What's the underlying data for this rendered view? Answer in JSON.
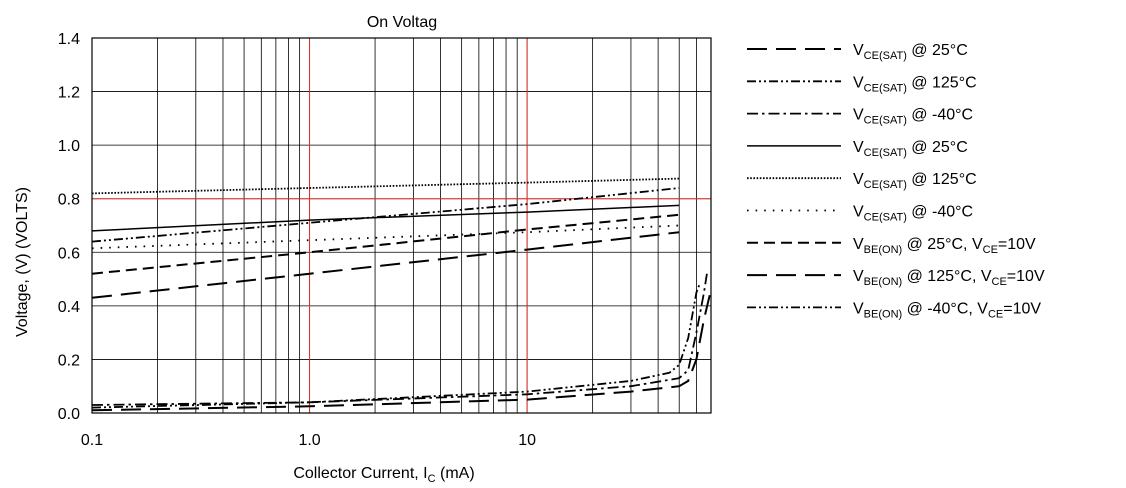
{
  "chart_data": {
    "type": "line",
    "title": "On Voltag",
    "xlabel": {
      "main": "Collector Current, I",
      "sub": "C",
      "tail": " (mA)"
    },
    "ylabel": "Voltage, (V) (VOLTS)",
    "x_scale": "log",
    "xlim": [
      0.1,
      70
    ],
    "ylim": [
      0,
      1.4
    ],
    "x_tick_labels": [
      {
        "value": 0.1,
        "label": "0.1"
      },
      {
        "value": 1,
        "label": "1.0"
      },
      {
        "value": 10,
        "label": "10"
      }
    ],
    "y_tick_labels": [
      {
        "value": 0,
        "label": "0.0"
      },
      {
        "value": 0.2,
        "label": "0.2"
      },
      {
        "value": 0.4,
        "label": "0.4"
      },
      {
        "value": 0.6,
        "label": "0.6"
      },
      {
        "value": 0.8,
        "label": "0.8"
      },
      {
        "value": 1.0,
        "label": "1.0"
      },
      {
        "value": 1.2,
        "label": "1.2"
      },
      {
        "value": 1.4,
        "label": "1.4"
      }
    ],
    "grid": true,
    "grid_color": "#000000",
    "highlight_gridlines": {
      "x": [
        1,
        10
      ],
      "y": [
        0.8
      ],
      "color": "#e8302a"
    },
    "legend_position": "right",
    "series": [
      {
        "name": {
          "main": "V",
          "sub": "CE(SAT)",
          "tail": " @ 25°C"
        },
        "dash": "long-dash",
        "points": [
          [
            0.1,
            0.01
          ],
          [
            1,
            0.025
          ],
          [
            10,
            0.05
          ],
          [
            30,
            0.08
          ],
          [
            50,
            0.1
          ],
          [
            55,
            0.12
          ],
          [
            60,
            0.2
          ],
          [
            65,
            0.35
          ],
          [
            70,
            0.46
          ]
        ]
      },
      {
        "name": {
          "main": "V",
          "sub": "CE(SAT)",
          "tail": " @ 125°C"
        },
        "dash": "dash-dot-dot",
        "points": [
          [
            0.1,
            0.02
          ],
          [
            1,
            0.04
          ],
          [
            10,
            0.08
          ],
          [
            30,
            0.12
          ],
          [
            45,
            0.15
          ],
          [
            50,
            0.18
          ],
          [
            55,
            0.28
          ],
          [
            60,
            0.45
          ],
          [
            62,
            0.48
          ]
        ]
      },
      {
        "name": {
          "main": "V",
          "sub": "CE(SAT)",
          "tail": " @ -40°C"
        },
        "dash": "dash-dot",
        "points": [
          [
            0.1,
            0.03
          ],
          [
            1,
            0.04
          ],
          [
            10,
            0.07
          ],
          [
            30,
            0.1
          ],
          [
            50,
            0.13
          ],
          [
            55,
            0.16
          ],
          [
            60,
            0.3
          ],
          [
            65,
            0.45
          ],
          [
            67,
            0.52
          ]
        ]
      },
      {
        "name": {
          "main": "V",
          "sub": "CE(SAT)",
          "tail": " @ 25°C"
        },
        "dash": "solid",
        "points": [
          [
            0.1,
            0.68
          ],
          [
            1,
            0.72
          ],
          [
            10,
            0.75
          ],
          [
            50,
            0.775
          ]
        ]
      },
      {
        "name": {
          "main": "V",
          "sub": "CE(SAT)",
          "tail": " @ 125°C"
        },
        "dash": "dense-dot",
        "points": [
          [
            0.1,
            0.82
          ],
          [
            1,
            0.84
          ],
          [
            10,
            0.86
          ],
          [
            50,
            0.875
          ]
        ]
      },
      {
        "name": {
          "main": "V",
          "sub": "CE(SAT)",
          "tail": " @ -40°C"
        },
        "dash": "sparse-dot",
        "points": [
          [
            0.1,
            0.615
          ],
          [
            1,
            0.645
          ],
          [
            10,
            0.675
          ],
          [
            50,
            0.7
          ]
        ]
      },
      {
        "name": {
          "main": "V",
          "sub": "BE(ON)",
          "tail": " @ 25°C, V",
          "sub2": "CE",
          "tail2": "=10V"
        },
        "dash": "medium-dash",
        "points": [
          [
            0.1,
            0.52
          ],
          [
            1,
            0.6
          ],
          [
            10,
            0.685
          ],
          [
            50,
            0.74
          ]
        ]
      },
      {
        "name": {
          "main": "V",
          "sub": "BE(ON)",
          "tail": " @ 125°C, V",
          "sub2": "CE",
          "tail2": "=10V"
        },
        "dash": "long-dash",
        "points": [
          [
            0.1,
            0.43
          ],
          [
            1,
            0.52
          ],
          [
            10,
            0.61
          ],
          [
            50,
            0.675
          ]
        ]
      },
      {
        "name": {
          "main": "V",
          "sub": "BE(ON)",
          "tail": " @ -40°C, V",
          "sub2": "CE",
          "tail2": "=10V"
        },
        "dash": "dash-dot-dot",
        "points": [
          [
            0.1,
            0.64
          ],
          [
            1,
            0.71
          ],
          [
            10,
            0.78
          ],
          [
            50,
            0.84
          ]
        ]
      }
    ]
  }
}
